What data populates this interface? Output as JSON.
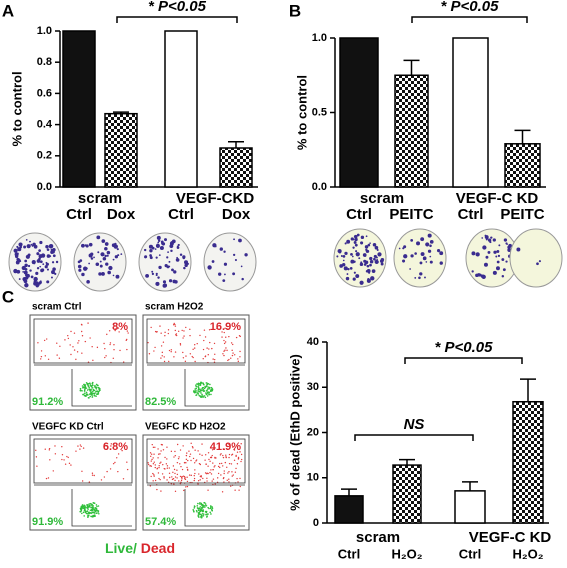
{
  "chart_data": [
    {
      "type": "bar",
      "panel_label": "A",
      "ylabel": "% to control",
      "groups": [
        "scram",
        "VEGF-CKD"
      ],
      "categories": [
        "Ctrl",
        "Dox",
        "Ctrl",
        "Dox"
      ],
      "values": [
        1.0,
        0.47,
        1.0,
        0.25
      ],
      "errors": [
        null,
        0.01,
        null,
        0.04
      ],
      "colors": [
        "#111111",
        "#ffffff",
        "#ffffff",
        "#ffffff"
      ],
      "hatch": [
        false,
        true,
        false,
        true
      ],
      "ylim": [
        0,
        1.0
      ],
      "yticks": [
        {
          "value": 0,
          "label": "0.0"
        },
        0.2,
        0.4,
        0.6,
        0.8,
        {
          "value": 1.0,
          "label": "1.0"
        }
      ],
      "annotations": [
        "* P<0.05"
      ]
    },
    {
      "type": "bar",
      "panel_label": "B",
      "ylabel": "% to control",
      "groups": [
        "scram",
        "VEGF-C KD"
      ],
      "categories": [
        "Ctrl",
        "PEITC",
        "Ctrl",
        "PEITC"
      ],
      "values": [
        1.0,
        0.75,
        1.0,
        0.29
      ],
      "errors": [
        null,
        0.1,
        null,
        0.09
      ],
      "colors": [
        "#111111",
        "#ffffff",
        "#ffffff",
        "#ffffff"
      ],
      "hatch": [
        false,
        true,
        false,
        true
      ],
      "ylim": [
        0,
        1.0
      ],
      "yticks": [
        {
          "value": 0,
          "label": "0.0"
        },
        0.5,
        {
          "value": 1.0,
          "label": "1.0"
        }
      ],
      "annotations": [
        "* P<0.05"
      ]
    },
    {
      "type": "bar",
      "panel_label": "C",
      "ylabel": "% of dead (EthD positive)",
      "groups": [
        "scram",
        "VEGF-C KD"
      ],
      "categories": [
        "Ctrl",
        "H₂O₂",
        "Ctrl",
        "H₂O₂"
      ],
      "values": [
        6.0,
        12.8,
        7.1,
        26.8
      ],
      "errors": [
        1.5,
        1.2,
        2.0,
        5.0
      ],
      "colors": [
        "#111111",
        "#ffffff",
        "#ffffff",
        "#ffffff"
      ],
      "hatch": [
        false,
        true,
        false,
        true
      ],
      "ylim": [
        0,
        40
      ],
      "yticks": [
        0,
        10,
        20,
        30,
        40
      ],
      "annotations": [
        "NS",
        "* P<0.05"
      ]
    }
  ],
  "flow_panels": [
    {
      "title": "scram Ctrl",
      "dead": "8%",
      "live": "91.2%"
    },
    {
      "title": "scram H2O2",
      "dead": "16.9%",
      "live": "82.5%"
    },
    {
      "title": "VEGFC KD  Ctrl",
      "dead": "6.8%",
      "live": "91.9%"
    },
    {
      "title": "VEGFC KD H2O2",
      "dead": "41.9%",
      "live": "57.4%"
    }
  ],
  "flow_legend": {
    "live": "Live/",
    "dead": " Dead"
  }
}
